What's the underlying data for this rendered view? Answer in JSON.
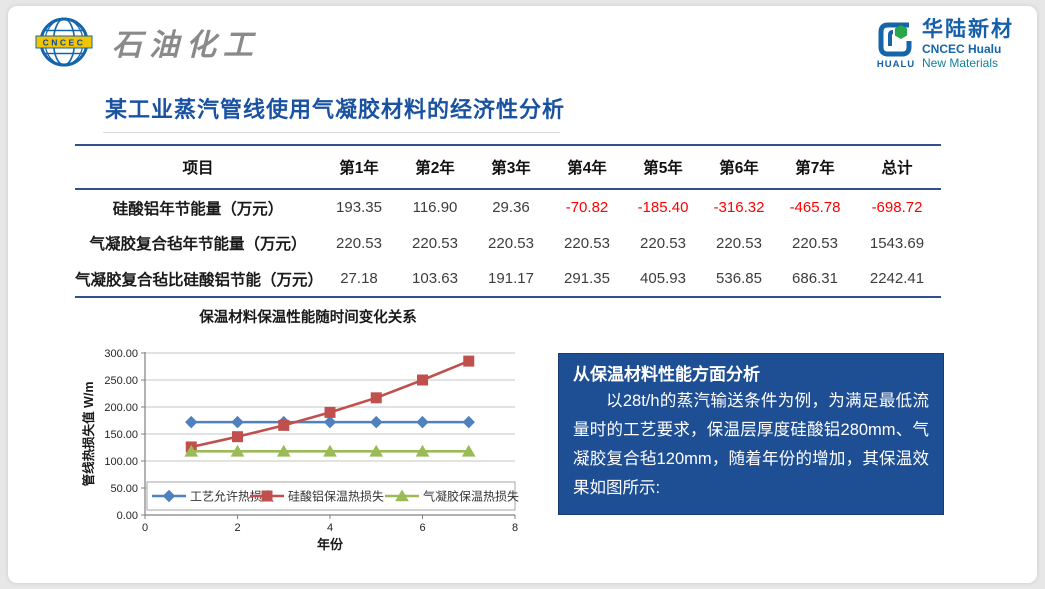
{
  "page": {
    "background": "#e7e7e7",
    "slide_background": "#ffffff"
  },
  "header": {
    "left_logo": {
      "org": "CNCEC",
      "text": "石油化工"
    },
    "right_logo": {
      "mark_text": "HUALU",
      "cn": "华陆新材",
      "en1": "CNCEC Hualu",
      "en2": "New Materials"
    }
  },
  "title": "某工业蒸汽管线使用气凝胶材料的经济性分析",
  "table": {
    "columns": [
      "项目",
      "第1年",
      "第2年",
      "第3年",
      "第4年",
      "第5年",
      "第6年",
      "第7年",
      "总计"
    ],
    "rows": [
      {
        "label": "硅酸铝年节能量（万元）",
        "values": [
          "193.35",
          "116.90",
          "29.36",
          "-70.82",
          "-185.40",
          "-316.32",
          "-465.78",
          "-698.72"
        ]
      },
      {
        "label": "气凝胶复合毡年节能量（万元）",
        "values": [
          "220.53",
          "220.53",
          "220.53",
          "220.53",
          "220.53",
          "220.53",
          "220.53",
          "1543.69"
        ]
      },
      {
        "label": "气凝胶复合毡比硅酸铝节能（万元）",
        "values": [
          "27.18",
          "103.63",
          "191.17",
          "291.35",
          "405.93",
          "536.85",
          "686.31",
          "2242.41"
        ]
      }
    ],
    "negative_color": "#fe0000"
  },
  "chart_data": {
    "type": "line",
    "title": "保温材料保温性能随时间变化关系",
    "xlabel": "年份",
    "ylabel": "管线热损失值 W/m",
    "xlim": [
      0,
      8
    ],
    "ylim": [
      0,
      300
    ],
    "ytick_step": 50,
    "xticks": [
      0,
      2,
      4,
      6,
      8
    ],
    "grid": true,
    "legend_position": "bottom-inside",
    "x": [
      1,
      2,
      3,
      4,
      5,
      6,
      7
    ],
    "series": [
      {
        "name": "工艺允许热损失",
        "color": "#4F81BD",
        "marker": "diamond",
        "values": [
          172,
          172,
          172,
          172,
          172,
          172,
          172
        ]
      },
      {
        "name": "硅酸铝保温热损失",
        "color": "#C0504D",
        "marker": "square",
        "values": [
          126,
          145,
          166,
          190,
          217,
          250,
          285
        ]
      },
      {
        "name": "气凝胶保温热损失",
        "color": "#9BBB59",
        "marker": "triangle",
        "values": [
          118,
          118,
          118,
          118,
          118,
          118,
          118
        ]
      }
    ]
  },
  "info_box": {
    "heading": "从保温材料性能方面分析",
    "body": "以28t/h的蒸汽输送条件为例，为满足最低流量时的工艺要求，保温层厚度硅酸铝280mm、气凝胶复合毡120mm，随着年份的增加，其保温效果如图所示:"
  },
  "colors": {
    "title": "#1a52a2",
    "table_border": "#31518e",
    "info_box_bg": "#1e4f94",
    "negative": "#fe0000",
    "series_blue": "#4F81BD",
    "series_red": "#C0504D",
    "series_green": "#9BBB59"
  }
}
